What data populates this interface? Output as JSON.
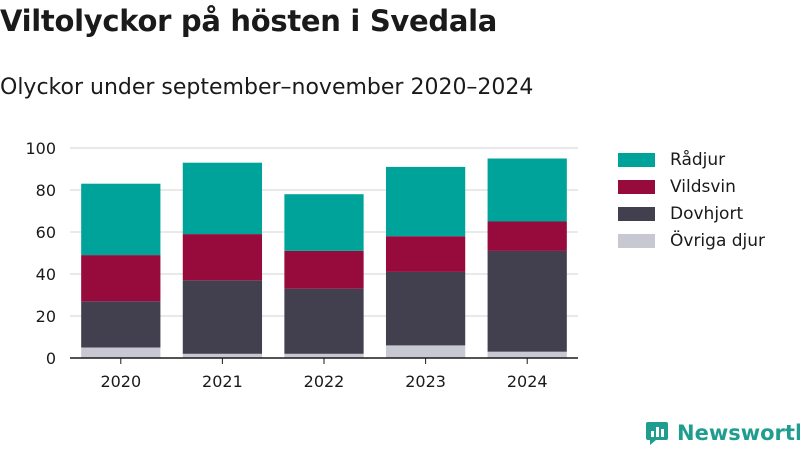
{
  "header": {
    "title": "Viltolyckor på hösten i Svedala",
    "subtitle": "Olyckor under september–november 2020–2024"
  },
  "brand": {
    "name": "Newsworthy",
    "color": "#1f9e90",
    "icon": "newsworthy-logo-icon"
  },
  "chart_data": {
    "type": "bar",
    "stacked": true,
    "categories": [
      "2020",
      "2021",
      "2022",
      "2023",
      "2024"
    ],
    "series": [
      {
        "name": "Övriga djur",
        "color": "#c8c8d2",
        "values": [
          5,
          2,
          2,
          6,
          3
        ]
      },
      {
        "name": "Dovhjort",
        "color": "#42404f",
        "values": [
          22,
          35,
          31,
          35,
          48
        ]
      },
      {
        "name": "Vildsvin",
        "color": "#960a3c",
        "values": [
          22,
          22,
          18,
          17,
          14
        ]
      },
      {
        "name": "Rådjur",
        "color": "#00a39a",
        "values": [
          34,
          34,
          27,
          33,
          30
        ]
      }
    ],
    "legend_order": [
      "Rådjur",
      "Vildsvin",
      "Dovhjort",
      "Övriga djur"
    ],
    "ylim": [
      0,
      100
    ],
    "yticks": [
      0,
      20,
      40,
      60,
      80,
      100
    ],
    "grid": true,
    "legend_position": "right",
    "xlabel": "",
    "ylabel": ""
  }
}
